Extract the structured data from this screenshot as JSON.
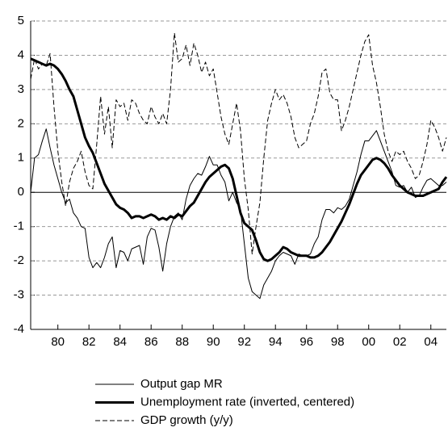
{
  "chart_data": {
    "type": "line",
    "x": [
      1978.25,
      1978.5,
      1978.75,
      1979,
      1979.25,
      1979.5,
      1979.75,
      1980,
      1980.25,
      1980.5,
      1980.75,
      1981,
      1981.25,
      1981.5,
      1981.75,
      1982,
      1982.25,
      1982.5,
      1982.75,
      1983,
      1983.25,
      1983.5,
      1983.75,
      1984,
      1984.25,
      1984.5,
      1984.75,
      1985,
      1985.25,
      1985.5,
      1985.75,
      1986,
      1986.25,
      1986.5,
      1986.75,
      1987,
      1987.25,
      1987.5,
      1987.75,
      1988,
      1988.25,
      1988.5,
      1988.75,
      1989,
      1989.25,
      1989.5,
      1989.75,
      1990,
      1990.25,
      1990.5,
      1990.75,
      1991,
      1991.25,
      1991.5,
      1991.75,
      1992,
      1992.25,
      1992.5,
      1992.75,
      1993,
      1993.25,
      1993.5,
      1993.75,
      1994,
      1994.25,
      1994.5,
      1994.75,
      1995,
      1995.25,
      1995.5,
      1995.75,
      1996,
      1996.25,
      1996.5,
      1996.75,
      1997,
      1997.25,
      1997.5,
      1997.75,
      1998,
      1998.25,
      1998.5,
      1998.75,
      1999,
      1999.25,
      1999.5,
      1999.75,
      2000,
      2000.25,
      2000.5,
      2000.75,
      2001,
      2001.25,
      2001.5,
      2001.75,
      2002,
      2002.25,
      2002.5,
      2002.75,
      2003,
      2003.25,
      2003.5,
      2003.75,
      2004,
      2004.25,
      2004.5,
      2004.75,
      2005
    ],
    "series": [
      {
        "name": "Output gap MR",
        "color": "#000000",
        "line_width": 1,
        "dash": false,
        "values": [
          0.0,
          1.0,
          1.1,
          1.5,
          1.85,
          1.3,
          0.8,
          0.4,
          0.0,
          -0.3,
          -0.2,
          -0.6,
          -0.75,
          -1.0,
          -1.05,
          -1.9,
          -2.2,
          -2.05,
          -2.2,
          -1.9,
          -1.5,
          -1.3,
          -2.2,
          -1.7,
          -1.75,
          -2.0,
          -1.65,
          -1.6,
          -1.55,
          -2.1,
          -1.3,
          -1.05,
          -1.1,
          -1.6,
          -2.3,
          -1.5,
          -1.0,
          -0.7,
          -0.6,
          -0.8,
          -0.2,
          0.2,
          0.4,
          0.55,
          0.5,
          0.75,
          1.05,
          0.8,
          0.8,
          0.5,
          0.3,
          -0.25,
          0.0,
          -0.3,
          -0.5,
          -1.5,
          -2.5,
          -2.9,
          -3.0,
          -3.1,
          -2.7,
          -2.5,
          -2.3,
          -2.0,
          -1.85,
          -1.75,
          -1.8,
          -1.85,
          -2.1,
          -1.8,
          -1.85,
          -1.85,
          -1.8,
          -1.5,
          -1.3,
          -0.8,
          -0.5,
          -0.5,
          -0.6,
          -0.45,
          -0.5,
          -0.4,
          -0.2,
          0.2,
          0.6,
          1.1,
          1.5,
          1.5,
          1.65,
          1.8,
          1.5,
          1.2,
          0.9,
          0.6,
          0.2,
          0.15,
          0.2,
          0.0,
          0.15,
          -0.15,
          -0.1,
          0.15,
          0.35,
          0.4,
          0.3,
          0.2,
          0.2,
          0.3
        ]
      },
      {
        "name": "Unemployment rate (inverted, centered)",
        "color": "#000000",
        "line_width": 3,
        "dash": false,
        "values": [
          3.9,
          3.85,
          3.8,
          3.75,
          3.7,
          3.75,
          3.7,
          3.6,
          3.45,
          3.25,
          3.0,
          2.8,
          2.4,
          2.0,
          1.6,
          1.35,
          1.15,
          0.85,
          0.55,
          0.25,
          0.05,
          -0.15,
          -0.35,
          -0.45,
          -0.5,
          -0.6,
          -0.75,
          -0.7,
          -0.7,
          -0.75,
          -0.7,
          -0.65,
          -0.7,
          -0.8,
          -0.75,
          -0.8,
          -0.7,
          -0.75,
          -0.65,
          -0.7,
          -0.55,
          -0.4,
          -0.3,
          -0.1,
          0.1,
          0.3,
          0.45,
          0.55,
          0.65,
          0.75,
          0.8,
          0.7,
          0.4,
          -0.1,
          -0.6,
          -0.9,
          -1.0,
          -1.1,
          -1.4,
          -1.75,
          -1.95,
          -2.0,
          -1.95,
          -1.85,
          -1.75,
          -1.6,
          -1.65,
          -1.75,
          -1.8,
          -1.85,
          -1.85,
          -1.85,
          -1.9,
          -1.9,
          -1.85,
          -1.75,
          -1.6,
          -1.45,
          -1.25,
          -1.05,
          -0.85,
          -0.6,
          -0.35,
          -0.05,
          0.25,
          0.5,
          0.65,
          0.8,
          0.95,
          1.0,
          0.95,
          0.85,
          0.7,
          0.5,
          0.35,
          0.2,
          0.1,
          0.0,
          -0.05,
          -0.1,
          -0.1,
          -0.1,
          -0.05,
          0.0,
          0.05,
          0.1,
          0.3,
          0.45
        ]
      },
      {
        "name": "GDP growth (y/y)",
        "color": "#000000",
        "line_width": 1,
        "dash": true,
        "values": [
          3.3,
          3.9,
          3.6,
          3.75,
          3.7,
          4.05,
          2.5,
          1.2,
          0.3,
          -0.4,
          0.3,
          0.7,
          0.9,
          1.2,
          0.6,
          0.2,
          0.1,
          1.4,
          2.8,
          1.7,
          2.5,
          1.3,
          2.7,
          2.5,
          2.6,
          2.1,
          2.7,
          2.6,
          2.3,
          2.1,
          2.0,
          2.5,
          2.2,
          2.0,
          2.3,
          2.0,
          3.0,
          4.65,
          3.8,
          3.9,
          4.3,
          3.7,
          4.35,
          4.0,
          3.5,
          3.8,
          3.4,
          3.6,
          2.9,
          2.2,
          1.7,
          1.4,
          2.0,
          2.6,
          1.8,
          0.4,
          -0.5,
          -1.8,
          -1.0,
          -0.3,
          1.0,
          2.1,
          2.6,
          3.0,
          2.7,
          2.85,
          2.6,
          2.2,
          1.6,
          1.3,
          1.4,
          1.5,
          2.0,
          2.3,
          2.8,
          3.5,
          3.6,
          2.9,
          2.7,
          2.7,
          1.8,
          2.1,
          2.5,
          3.0,
          3.5,
          4.0,
          4.4,
          4.6,
          3.7,
          3.2,
          2.5,
          1.7,
          1.2,
          0.9,
          1.2,
          1.1,
          1.2,
          0.9,
          0.7,
          0.4,
          0.5,
          0.9,
          1.4,
          2.1,
          1.9,
          1.6,
          1.2,
          1.6
        ]
      }
    ],
    "xlim": [
      1978.25,
      2005
    ],
    "xticks": [
      {
        "value": 1980,
        "label": "80"
      },
      {
        "value": 1982,
        "label": "82"
      },
      {
        "value": 1984,
        "label": "84"
      },
      {
        "value": 1986,
        "label": "86"
      },
      {
        "value": 1988,
        "label": "88"
      },
      {
        "value": 1990,
        "label": "90"
      },
      {
        "value": 1992,
        "label": "92"
      },
      {
        "value": 1994,
        "label": "94"
      },
      {
        "value": 1996,
        "label": "96"
      },
      {
        "value": 1998,
        "label": "98"
      },
      {
        "value": 2000,
        "label": "00"
      },
      {
        "value": 2002,
        "label": "02"
      },
      {
        "value": 2004,
        "label": "04"
      }
    ],
    "ylim": [
      -4,
      5
    ],
    "yticks": [
      -4,
      -3,
      -2,
      -1,
      0,
      1,
      2,
      3,
      4,
      5
    ],
    "grid": true,
    "legend": "bottom"
  }
}
